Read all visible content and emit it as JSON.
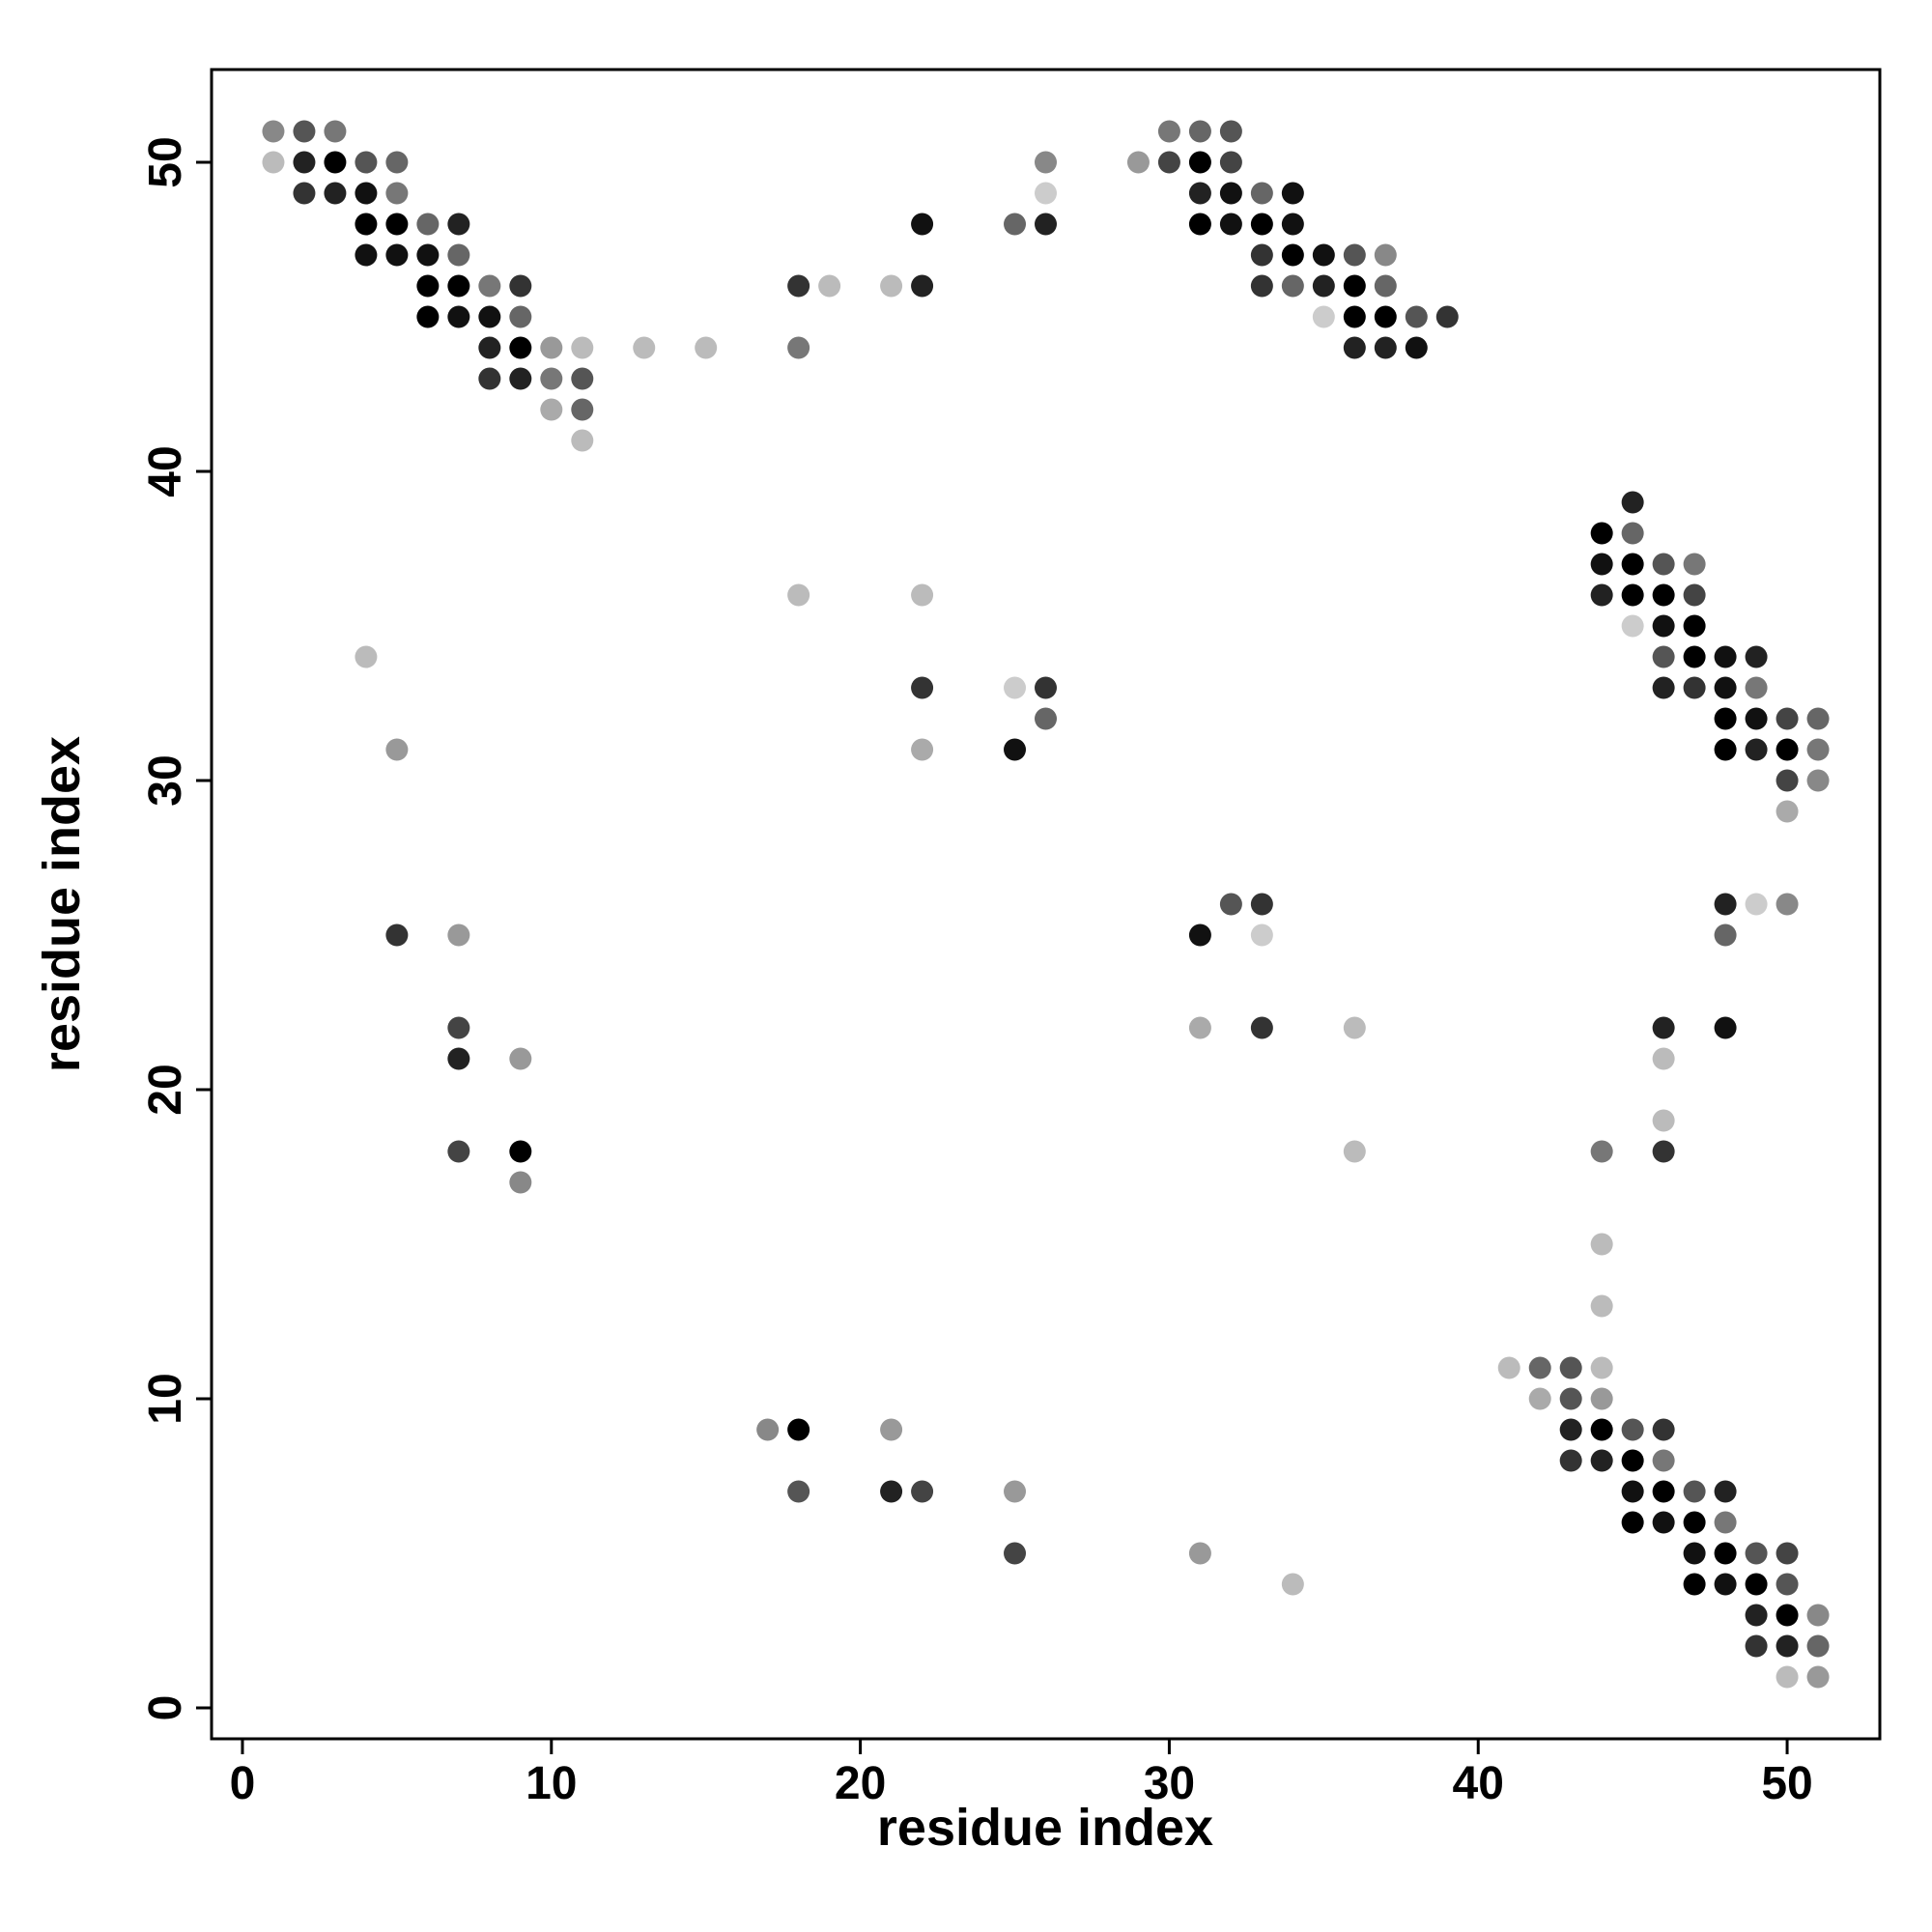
{
  "chart_data": {
    "type": "scatter",
    "xlabel": "residue index",
    "ylabel": "residue index",
    "xlim": [
      -1,
      53
    ],
    "ylim": [
      -1,
      53
    ],
    "xticks": [
      0,
      10,
      20,
      30,
      40,
      50
    ],
    "yticks": [
      0,
      10,
      20,
      30,
      40,
      50
    ],
    "x": [
      1,
      2,
      3,
      30,
      31,
      32,
      1,
      2,
      3,
      4,
      5,
      26,
      29,
      30,
      31,
      32,
      2,
      3,
      4,
      5,
      26,
      31,
      32,
      33,
      34,
      4,
      5,
      6,
      7,
      22,
      25,
      26,
      31,
      32,
      33,
      34,
      4,
      5,
      6,
      7,
      33,
      34,
      35,
      36,
      37,
      6,
      7,
      8,
      9,
      18,
      19,
      21,
      22,
      33,
      34,
      35,
      36,
      37,
      6,
      7,
      8,
      9,
      35,
      36,
      37,
      38,
      39,
      8,
      9,
      10,
      11,
      13,
      15,
      18,
      36,
      37,
      38,
      8,
      9,
      10,
      11,
      10,
      11,
      11,
      45,
      44,
      45,
      44,
      45,
      46,
      47,
      18,
      22,
      44,
      45,
      46,
      47,
      45,
      46,
      47,
      4,
      46,
      47,
      48,
      49,
      22,
      25,
      26,
      46,
      47,
      48,
      49,
      26,
      48,
      49,
      50,
      51,
      5,
      22,
      25,
      48,
      49,
      50,
      51,
      50,
      51,
      50,
      32,
      33,
      48,
      49,
      50,
      5,
      7,
      31,
      33,
      48,
      7,
      31,
      33,
      36,
      46,
      48,
      7,
      9,
      46,
      46,
      7,
      9,
      36,
      44,
      46,
      9,
      44,
      44,
      41,
      42,
      43,
      44,
      42,
      43,
      44,
      17,
      18,
      21,
      43,
      44,
      45,
      46,
      43,
      44,
      45,
      46,
      18,
      21,
      22,
      25,
      45,
      46,
      47,
      48,
      45,
      46,
      47,
      48,
      25,
      31,
      47,
      48,
      49,
      50,
      34,
      47,
      48,
      49,
      50,
      49,
      50,
      51,
      49,
      50,
      51,
      50,
      51
    ],
    "y": [
      51,
      51,
      51,
      51,
      51,
      51,
      50,
      50,
      50,
      50,
      50,
      50,
      50,
      50,
      50,
      50,
      49,
      49,
      49,
      49,
      49,
      49,
      49,
      49,
      49,
      48,
      48,
      48,
      48,
      48,
      48,
      48,
      48,
      48,
      48,
      48,
      47,
      47,
      47,
      47,
      47,
      47,
      47,
      47,
      47,
      46,
      46,
      46,
      46,
      46,
      46,
      46,
      46,
      46,
      46,
      46,
      46,
      46,
      45,
      45,
      45,
      45,
      45,
      45,
      45,
      45,
      45,
      44,
      44,
      44,
      44,
      44,
      44,
      44,
      44,
      44,
      44,
      43,
      43,
      43,
      43,
      42,
      42,
      41,
      39,
      38,
      38,
      37,
      37,
      37,
      37,
      36,
      36,
      36,
      36,
      36,
      36,
      35,
      35,
      35,
      34,
      34,
      34,
      34,
      34,
      33,
      33,
      33,
      33,
      33,
      33,
      33,
      32,
      32,
      32,
      32,
      32,
      31,
      31,
      31,
      31,
      31,
      31,
      31,
      30,
      30,
      29,
      26,
      26,
      26,
      26,
      26,
      25,
      25,
      25,
      25,
      25,
      22,
      22,
      22,
      22,
      22,
      22,
      21,
      21,
      21,
      19,
      18,
      18,
      18,
      18,
      18,
      17,
      15,
      13,
      11,
      11,
      11,
      11,
      10,
      10,
      10,
      9,
      9,
      9,
      9,
      9,
      9,
      9,
      8,
      8,
      8,
      8,
      7,
      7,
      7,
      7,
      7,
      7,
      7,
      7,
      6,
      6,
      6,
      6,
      5,
      5,
      5,
      5,
      5,
      5,
      4,
      4,
      4,
      4,
      4,
      3,
      3,
      3,
      2,
      2,
      2,
      1,
      1
    ],
    "colors": [
      "#888",
      "#555",
      "#777",
      "#777",
      "#666",
      "#555",
      "#bbb",
      "#222",
      "#000",
      "#555",
      "#666",
      "#888",
      "#999",
      "#444",
      "#000",
      "#444",
      "#333",
      "#222",
      "#111",
      "#777",
      "#ccc",
      "#222",
      "#111",
      "#666",
      "#111",
      "#000",
      "#000",
      "#666",
      "#222",
      "#111",
      "#666",
      "#222",
      "#000",
      "#111",
      "#000",
      "#111",
      "#111",
      "#111",
      "#111",
      "#666",
      "#333",
      "#000",
      "#111",
      "#555",
      "#888",
      "#000",
      "#000",
      "#777",
      "#333",
      "#333",
      "#bbb",
      "#bbb",
      "#222",
      "#333",
      "#666",
      "#222",
      "#000",
      "#666",
      "#000",
      "#111",
      "#111",
      "#666",
      "#ccc",
      "#000",
      "#000",
      "#555",
      "#333",
      "#222",
      "#000",
      "#999",
      "#bbb",
      "#bbb",
      "#bbb",
      "#777",
      "#222",
      "#222",
      "#111",
      "#333",
      "#222",
      "#777",
      "#555",
      "#aaa",
      "#666",
      "#bbb",
      "#222",
      "#000",
      "#666",
      "#111",
      "#000",
      "#555",
      "#777",
      "#bbb",
      "#bbb",
      "#222",
      "#000",
      "#000",
      "#444",
      "#ccc",
      "#111",
      "#000",
      "#bbb",
      "#555",
      "#000",
      "#111",
      "#222",
      "#333",
      "#ccc",
      "#333",
      "#222",
      "#333",
      "#111",
      "#777",
      "#666",
      "#000",
      "#111",
      "#444",
      "#666",
      "#999",
      "#aaa",
      "#111",
      "#000",
      "#222",
      "#000",
      "#777",
      "#444",
      "#888",
      "#aaa",
      "#555",
      "#333",
      "#222",
      "#ccc",
      "#888",
      "#333",
      "#999",
      "#111",
      "#ccc",
      "#666",
      "#444",
      "#aaa",
      "#333",
      "#bbb",
      "#222",
      "#111",
      "#222",
      "#999",
      "#bbb",
      "#bbb",
      "#444",
      "#000",
      "#bbb",
      "#777",
      "#333",
      "#888",
      "#bbb",
      "#bbb",
      "#bbb",
      "#666",
      "#555",
      "#bbb",
      "#aaa",
      "#555",
      "#999",
      "#888",
      "#000",
      "#999",
      "#222",
      "#000",
      "#555",
      "#333",
      "#333",
      "#222",
      "#000",
      "#777",
      "#555",
      "#222",
      "#444",
      "#999",
      "#111",
      "#000",
      "#555",
      "#222",
      "#000",
      "#111",
      "#000",
      "#777",
      "#444",
      "#999",
      "#111",
      "#000",
      "#555",
      "#444",
      "#bbb",
      "#000",
      "#111",
      "#000",
      "#555",
      "#222",
      "#000",
      "#888",
      "#333",
      "#222",
      "#666",
      "#bbb",
      "#999"
    ]
  }
}
